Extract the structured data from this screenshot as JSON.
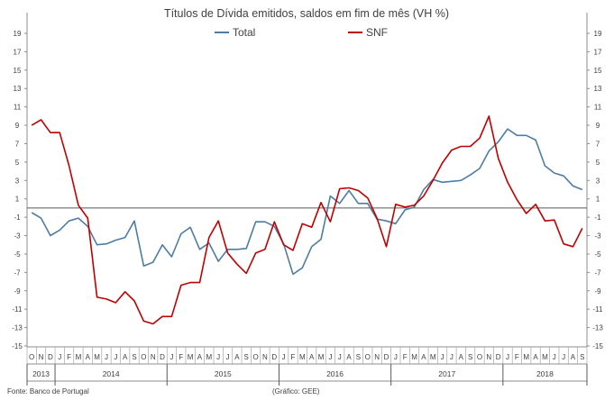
{
  "chart_data": {
    "type": "line",
    "title": "Títulos de Dívida emitidos, saldos em fim de mês (VH %)",
    "ylim": [
      -15,
      19
    ],
    "yticks": [
      19,
      17,
      15,
      13,
      11,
      9,
      7,
      5,
      3,
      1,
      -1,
      -3,
      -5,
      -7,
      -9,
      -11,
      -13,
      -15
    ],
    "months": [
      "O",
      "N",
      "D",
      "J",
      "F",
      "M",
      "A",
      "M",
      "J",
      "J",
      "A",
      "S",
      "O",
      "N",
      "D",
      "J",
      "F",
      "M",
      "A",
      "M",
      "J",
      "J",
      "A",
      "S",
      "O",
      "N",
      "D",
      "J",
      "F",
      "M",
      "A",
      "M",
      "J",
      "J",
      "A",
      "S",
      "O",
      "N",
      "D",
      "J",
      "F",
      "M",
      "A",
      "M",
      "J",
      "J",
      "A",
      "S",
      "O",
      "N",
      "D",
      "J",
      "F",
      "M",
      "A",
      "M",
      "J",
      "J",
      "A",
      "S"
    ],
    "years": [
      {
        "label": "2013",
        "start": 0,
        "end": 3
      },
      {
        "label": "2014",
        "start": 3,
        "end": 15
      },
      {
        "label": "2015",
        "start": 15,
        "end": 27
      },
      {
        "label": "2016",
        "start": 27,
        "end": 39
      },
      {
        "label": "2017",
        "start": 39,
        "end": 51
      },
      {
        "label": "2018",
        "start": 51,
        "end": 60
      }
    ],
    "series": [
      {
        "name": "Total",
        "color": "#4f7ca3",
        "values": [
          -0.5,
          -1.1,
          -3.0,
          -2.4,
          -1.4,
          -1.1,
          -2.0,
          -4.0,
          -3.9,
          -3.5,
          -3.2,
          -1.4,
          -6.3,
          -5.9,
          -4.0,
          -5.3,
          -2.8,
          -2.1,
          -4.5,
          -3.8,
          -5.8,
          -4.5,
          -4.5,
          -4.4,
          -1.5,
          -1.5,
          -2.0,
          -3.9,
          -7.2,
          -6.5,
          -4.2,
          -3.4,
          1.3,
          0.5,
          1.9,
          0.5,
          0.5,
          -1.2,
          -1.4,
          -1.7,
          -0.2,
          0.1,
          2.0,
          3.1,
          2.8,
          2.9,
          3.0,
          3.6,
          4.3,
          6.2,
          7.2,
          8.6,
          7.9,
          7.9,
          7.4,
          4.6,
          3.8,
          3.5,
          2.4,
          2.0
        ]
      },
      {
        "name": "SNF",
        "color": "#c00000",
        "values": [
          9.0,
          9.6,
          8.2,
          8.2,
          4.6,
          0.3,
          -1.1,
          -9.7,
          -9.9,
          -10.3,
          -9.1,
          -10.1,
          -12.3,
          -12.6,
          -11.8,
          -11.8,
          -8.4,
          -8.1,
          -8.1,
          -3.2,
          -1.4,
          -4.9,
          -6.1,
          -7.1,
          -4.9,
          -4.5,
          -1.5,
          -4.0,
          -4.6,
          -1.7,
          -2.1,
          0.6,
          -1.5,
          2.1,
          2.2,
          1.9,
          1.1,
          -1.1,
          -4.2,
          0.4,
          0.1,
          0.3,
          1.3,
          3.0,
          4.9,
          6.3,
          6.7,
          6.7,
          7.6,
          10.0,
          5.4,
          2.8,
          0.9,
          -0.6,
          0.4,
          -1.4,
          -1.3,
          -3.9,
          -4.2,
          -2.2
        ]
      }
    ]
  },
  "legend": {
    "total_label": "Total",
    "snf_label": "SNF"
  },
  "footer": {
    "source": "Fonte: Banco de Portugal",
    "credit": "(Gráfico: GEE)"
  }
}
